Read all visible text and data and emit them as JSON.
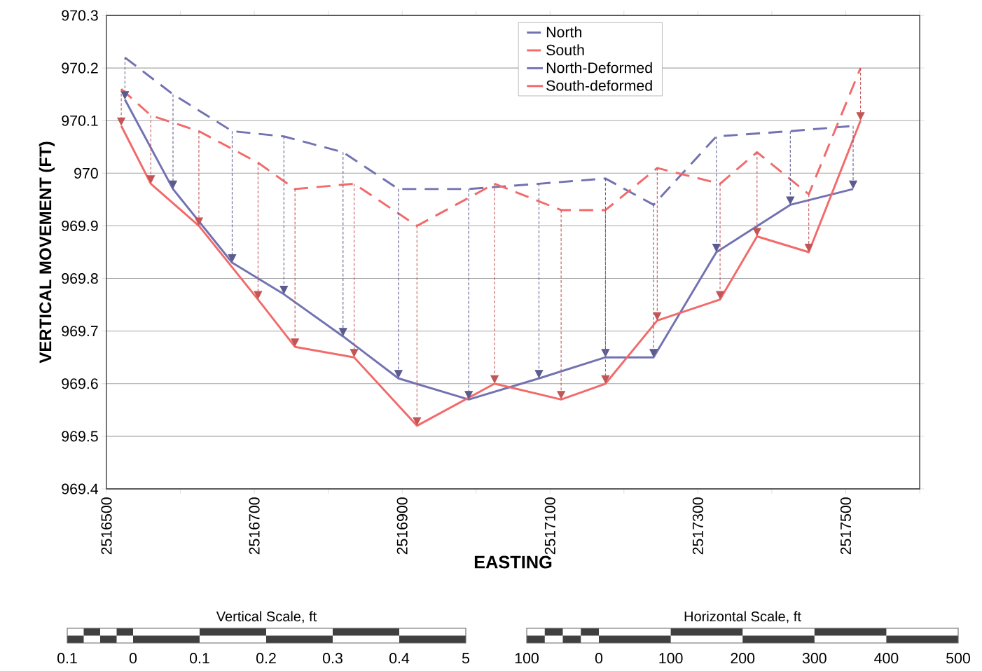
{
  "chart_data": {
    "type": "line",
    "xlabel": "EASTING",
    "ylabel": "VERTICAL MOVEMENT (FT)",
    "xlim": [
      2516500,
      2517600
    ],
    "xticks": [
      2516500,
      {
        "value": 2516600,
        "label": null
      },
      2516700,
      {
        "value": 2516800,
        "label": null
      },
      2516900,
      {
        "value": 2517000,
        "label": null
      },
      2517100,
      {
        "value": 2517200,
        "label": null
      },
      2517300,
      {
        "value": 2517400,
        "label": null
      },
      2517500,
      {
        "value": 2517600,
        "label": null
      }
    ],
    "ylim": [
      969.4,
      970.3
    ],
    "yticks": [
      969.4,
      969.5,
      969.6,
      969.7,
      969.8,
      969.9,
      970,
      970.1,
      970.2,
      970.3
    ],
    "grid": "y",
    "legend": "top",
    "series": [
      {
        "name": "North",
        "color": "#7272b2",
        "line_style": "dashed",
        "x": [
          2516525,
          2516590,
          2516670,
          2516740,
          2516820,
          2516895,
          2516990,
          2517085,
          2517175,
          2517240,
          2517325,
          2517425,
          2517510
        ],
        "values": [
          970.22,
          970.15,
          970.08,
          970.07,
          970.04,
          969.97,
          969.97,
          969.98,
          969.99,
          969.94,
          970.07,
          970.08,
          970.09
        ]
      },
      {
        "name": "South",
        "color": "#f26a6a",
        "line_style": "dashed",
        "x": [
          2516520,
          2516560,
          2516625,
          2516705,
          2516755,
          2516835,
          2516920,
          2517025,
          2517115,
          2517175,
          2517245,
          2517330,
          2517380,
          2517450,
          2517520
        ],
        "values": [
          970.16,
          970.11,
          970.08,
          970.02,
          969.97,
          969.98,
          969.9,
          969.98,
          969.93,
          969.93,
          970.01,
          969.98,
          970.04,
          969.96,
          970.2
        ]
      },
      {
        "name": "North-Deformed",
        "color": "#7272b2",
        "line_style": "solid",
        "x": [
          2516525,
          2516590,
          2516670,
          2516740,
          2516820,
          2516895,
          2516990,
          2517085,
          2517175,
          2517240,
          2517325,
          2517425,
          2517510
        ],
        "values": [
          970.14,
          969.97,
          969.83,
          969.77,
          969.69,
          969.61,
          969.57,
          969.61,
          969.65,
          969.65,
          969.85,
          969.94,
          969.97
        ]
      },
      {
        "name": "South-deformed",
        "color": "#f26a6a",
        "line_style": "solid",
        "x": [
          2516520,
          2516560,
          2516625,
          2516705,
          2516755,
          2516835,
          2516920,
          2517025,
          2517115,
          2517175,
          2517245,
          2517330,
          2517380,
          2517450,
          2517520
        ],
        "values": [
          970.09,
          969.98,
          969.9,
          969.76,
          969.67,
          969.65,
          969.52,
          969.6,
          969.57,
          969.6,
          969.72,
          969.76,
          969.88,
          969.85,
          970.1
        ]
      }
    ],
    "annotations": [
      "Vertical Scale, ft",
      "0.1",
      "0",
      "0.1",
      "0.2",
      "0.3",
      "0.4",
      "5",
      "Horizontal Scale, ft",
      "100",
      "0",
      "100",
      "200",
      "300",
      "400",
      "500"
    ]
  }
}
